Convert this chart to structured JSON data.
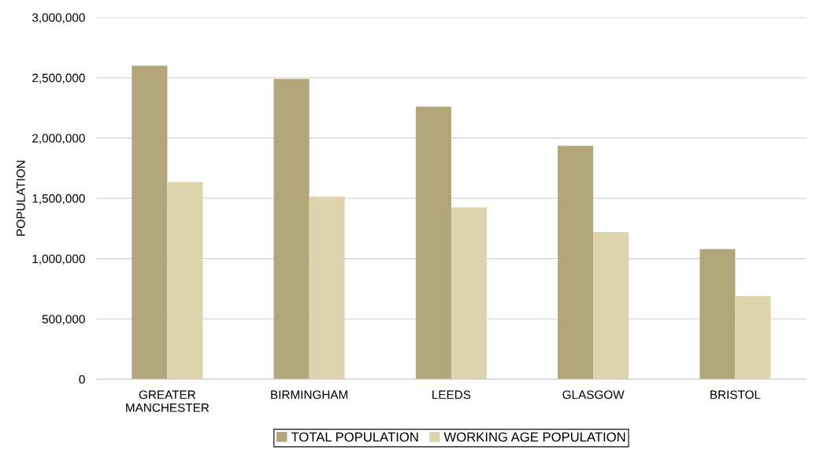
{
  "chart_data": {
    "type": "bar",
    "ylabel": "POPULATION",
    "categories": [
      "GREATER\nMANCHESTER",
      "BIRMINGHAM",
      "LEEDS",
      "GLASGOW",
      "BRISTOL"
    ],
    "series": [
      {
        "name": "TOTAL POPULATION",
        "color": "#b3a57a",
        "values": [
          2600000,
          2490000,
          2260000,
          1935000,
          1080000
        ]
      },
      {
        "name": "WORKING AGE POPULATION",
        "color": "#ddd3ad",
        "values": [
          1635000,
          1515000,
          1425000,
          1220000,
          690000
        ]
      }
    ],
    "ylim": [
      0,
      3000000
    ],
    "yticks": [
      {
        "value": 0,
        "label": "0"
      },
      {
        "value": 500000,
        "label": "500,000"
      },
      {
        "value": 1000000,
        "label": "1,000,000"
      },
      {
        "value": 1500000,
        "label": "1,500,000"
      },
      {
        "value": 2000000,
        "label": "2,000,000"
      },
      {
        "value": 2500000,
        "label": "2,500,000"
      },
      {
        "value": 3000000,
        "label": "3,000,000"
      }
    ],
    "grid": "y",
    "legend": "bottom"
  }
}
